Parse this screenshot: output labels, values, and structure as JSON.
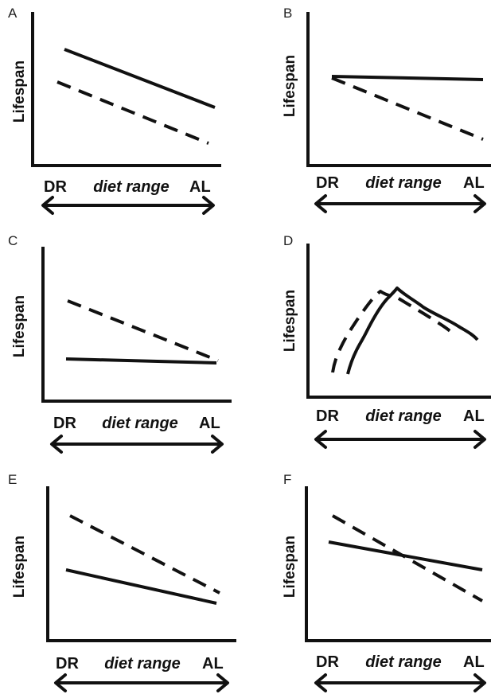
{
  "figure": {
    "panels": [
      {
        "letter": "A",
        "ylabel": "Lifespan",
        "dr": "DR",
        "range": "diet range",
        "al": "AL"
      },
      {
        "letter": "B",
        "ylabel": "Lifespan",
        "dr": "DR",
        "range": "diet range",
        "al": "AL"
      },
      {
        "letter": "C",
        "ylabel": "Lifespan",
        "dr": "DR",
        "range": "diet range",
        "al": "AL"
      },
      {
        "letter": "D",
        "ylabel": "Lifespan",
        "dr": "DR",
        "range": "diet range",
        "al": "AL"
      },
      {
        "letter": "E",
        "ylabel": "Lifespan",
        "dr": "DR",
        "range": "diet range",
        "al": "AL"
      },
      {
        "letter": "F",
        "ylabel": "Lifespan",
        "dr": "DR",
        "range": "diet range",
        "al": "AL"
      }
    ]
  },
  "colors": {
    "ink": "#111111",
    "background": "#ffffff"
  }
}
